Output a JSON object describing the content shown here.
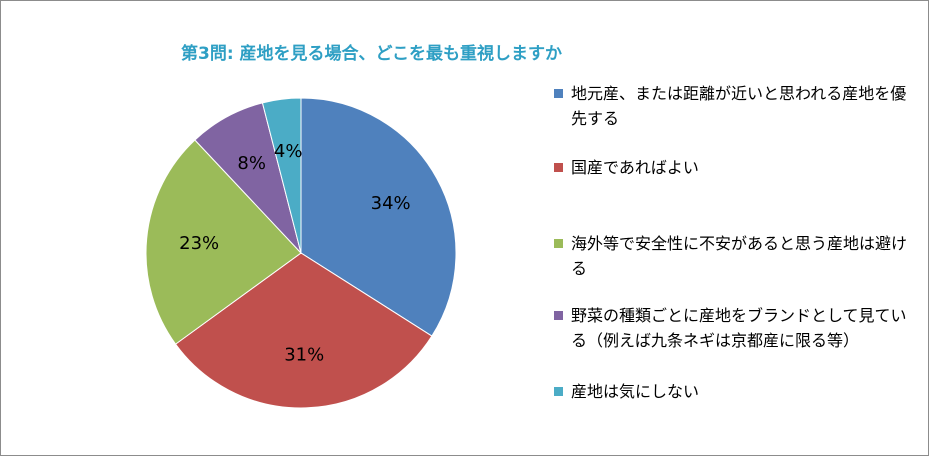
{
  "chart_data": {
    "type": "pie",
    "title": "第3問: 産地を見る場合、どこを最も重視しますか",
    "categories": [
      "地元産、または距離が近いと思われる産地を優先する",
      "国産であればよい",
      "海外等で安全性に不安があると思う産地は避ける",
      "野菜の種類ごとに産地をブランドとして見ている（例えば九条ネギは京都産に限る等）",
      "産地は気にしない"
    ],
    "values": [
      34,
      31,
      23,
      8,
      4
    ],
    "labels": [
      "34%",
      "31%",
      "23%",
      "8%",
      "4%"
    ],
    "colors": [
      "#4f81bd",
      "#c0504d",
      "#9bbb59",
      "#8064a2",
      "#4bacc6"
    ],
    "legend_position": "right"
  }
}
